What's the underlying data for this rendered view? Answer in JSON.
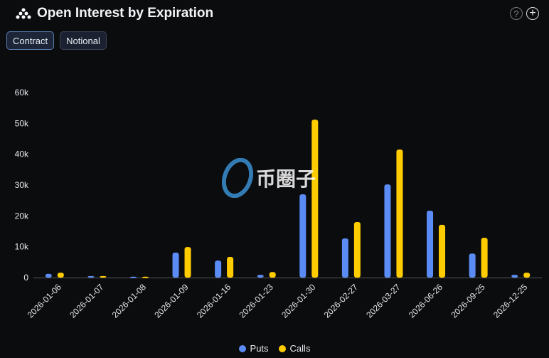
{
  "header": {
    "title": "Open Interest by Expiration",
    "help_icon": "question-circle-icon",
    "add_icon": "plus-circle-icon"
  },
  "toggle": {
    "options": [
      "Contract",
      "Notional"
    ],
    "selected": "Contract"
  },
  "watermark": {
    "text": "币圈子"
  },
  "colors": {
    "puts": "#5b8cf5",
    "calls": "#ffcc00"
  },
  "chart_data": {
    "type": "bar",
    "title": "Open Interest by Expiration",
    "categories": [
      "2026-01-06",
      "2026-01-07",
      "2026-01-08",
      "2026-01-09",
      "2026-01-16",
      "2026-01-23",
      "2026-01-30",
      "2026-02-27",
      "2026-03-27",
      "2026-06-26",
      "2026-09-25",
      "2026-12-25"
    ],
    "series": [
      {
        "name": "Puts",
        "values": [
          1200,
          500,
          300,
          8100,
          5500,
          900,
          27000,
          12700,
          30200,
          21700,
          7800,
          900
        ]
      },
      {
        "name": "Calls",
        "values": [
          1600,
          500,
          300,
          9900,
          6700,
          1800,
          51200,
          18000,
          41500,
          17100,
          12900,
          1600
        ]
      }
    ],
    "yticks": [
      "0",
      "10k",
      "20k",
      "30k",
      "40k",
      "50k",
      "60k"
    ],
    "ylim": [
      0,
      60000
    ],
    "xlabel": "",
    "ylabel": "",
    "legend": "bottom-center",
    "grid": false
  }
}
